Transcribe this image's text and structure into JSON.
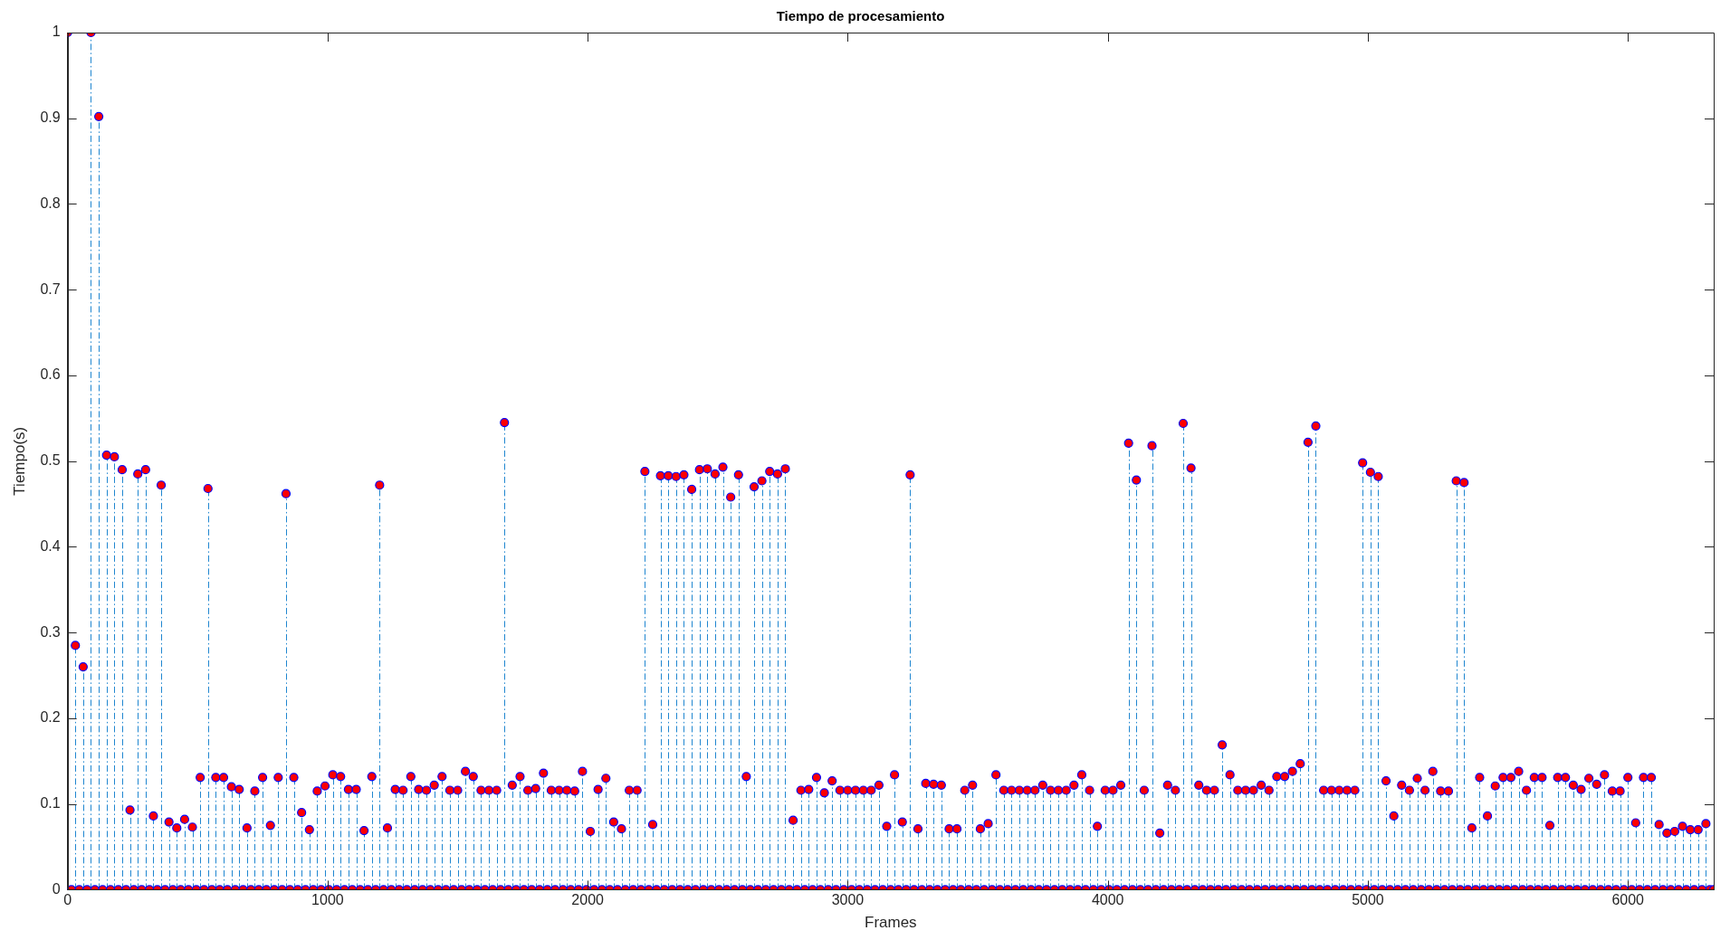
{
  "chart_data": {
    "type": "lollipop",
    "title": "Tiempo de procesamiento",
    "xlabel": "Frames",
    "ylabel": "Tiempo(s)",
    "x": [
      0,
      15,
      30,
      45,
      60,
      75,
      90,
      105,
      120,
      135,
      150,
      165,
      180,
      195,
      210,
      225,
      240,
      255,
      270,
      285,
      300,
      315,
      330,
      345,
      360,
      375,
      390,
      405,
      420,
      435,
      450,
      465,
      480,
      495,
      510,
      525,
      540,
      555,
      570,
      585,
      600,
      615,
      630,
      645,
      660,
      675,
      690,
      705,
      720,
      735,
      750,
      765,
      780,
      795,
      810,
      825,
      840,
      855,
      870,
      885,
      900,
      915,
      930,
      945,
      960,
      975,
      990,
      1005,
      1020,
      1035,
      1050,
      1065,
      1080,
      1095,
      1110,
      1125,
      1140,
      1155,
      1170,
      1185,
      1200,
      1215,
      1230,
      1245,
      1260,
      1275,
      1290,
      1305,
      1320,
      1335,
      1350,
      1365,
      1380,
      1395,
      1410,
      1425,
      1440,
      1455,
      1470,
      1485,
      1500,
      1515,
      1530,
      1545,
      1560,
      1575,
      1590,
      1605,
      1620,
      1635,
      1650,
      1665,
      1680,
      1695,
      1710,
      1725,
      1740,
      1755,
      1770,
      1785,
      1800,
      1815,
      1830,
      1845,
      1860,
      1875,
      1890,
      1905,
      1920,
      1935,
      1950,
      1965,
      1980,
      1995,
      2010,
      2025,
      2040,
      2055,
      2070,
      2085,
      2100,
      2115,
      2130,
      2145,
      2160,
      2175,
      2190,
      2205,
      2220,
      2235,
      2250,
      2265,
      2280,
      2295,
      2310,
      2325,
      2340,
      2355,
      2370,
      2385,
      2400,
      2415,
      2430,
      2445,
      2460,
      2475,
      2490,
      2505,
      2520,
      2535,
      2550,
      2565,
      2580,
      2595,
      2610,
      2625,
      2640,
      2655,
      2670,
      2685,
      2700,
      2715,
      2730,
      2745,
      2760,
      2775,
      2790,
      2805,
      2820,
      2835,
      2850,
      2865,
      2880,
      2895,
      2910,
      2925,
      2940,
      2955,
      2970,
      2985,
      3000,
      3015,
      3030,
      3045,
      3060,
      3075,
      3090,
      3105,
      3120,
      3135,
      3150,
      3165,
      3180,
      3195,
      3210,
      3225,
      3240,
      3255,
      3270,
      3285,
      3300,
      3315,
      3330,
      3345,
      3360,
      3375,
      3390,
      3405,
      3420,
      3435,
      3450,
      3465,
      3480,
      3495,
      3510,
      3525,
      3540,
      3555,
      3570,
      3585,
      3600,
      3615,
      3630,
      3645,
      3660,
      3675,
      3690,
      3705,
      3720,
      3735,
      3750,
      3765,
      3780,
      3795,
      3810,
      3825,
      3840,
      3855,
      3870,
      3885,
      3900,
      3915,
      3930,
      3945,
      3960,
      3975,
      3990,
      4005,
      4020,
      4035,
      4050,
      4065,
      4080,
      4095,
      4110,
      4125,
      4140,
      4155,
      4170,
      4185,
      4200,
      4215,
      4230,
      4245,
      4260,
      4275,
      4290,
      4305,
      4320,
      4335,
      4350,
      4365,
      4380,
      4395,
      4410,
      4425,
      4440,
      4455,
      4470,
      4485,
      4500,
      4515,
      4530,
      4545,
      4560,
      4575,
      4590,
      4605,
      4620,
      4635,
      4650,
      4665,
      4680,
      4695,
      4710,
      4725,
      4740,
      4755,
      4770,
      4785,
      4800,
      4815,
      4830,
      4845,
      4860,
      4875,
      4890,
      4905,
      4920,
      4935,
      4950,
      4965,
      4980,
      4995,
      5010,
      5025,
      5040,
      5055,
      5070,
      5085,
      5100,
      5115,
      5130,
      5145,
      5160,
      5175,
      5190,
      5205,
      5220,
      5235,
      5250,
      5265,
      5280,
      5295,
      5310,
      5325,
      5340,
      5355,
      5370,
      5385,
      5400,
      5415,
      5430,
      5445,
      5460,
      5475,
      5490,
      5505,
      5520,
      5535,
      5550,
      5565,
      5580,
      5595,
      5610,
      5625,
      5640,
      5655,
      5670,
      5685,
      5700,
      5715,
      5730,
      5745,
      5760,
      5775,
      5790,
      5805,
      5820,
      5835,
      5850,
      5865,
      5880,
      5895,
      5910,
      5925,
      5940,
      5955,
      5970,
      5985,
      6000,
      6015,
      6030,
      6045,
      6060,
      6075,
      6090,
      6105,
      6120,
      6135,
      6150,
      6165,
      6180,
      6195,
      6210,
      6225,
      6240,
      6255,
      6270,
      6285,
      6300,
      6315,
      6330
    ],
    "values": [
      1,
      0,
      0.285,
      0,
      0.26,
      0,
      1,
      0,
      0.902,
      0,
      0.507,
      0,
      0.505,
      0,
      0.49,
      0,
      0.093,
      0,
      0.485,
      0,
      0.49,
      0,
      0.086,
      0,
      0.472,
      0,
      0.079,
      0,
      0.072,
      0,
      0.082,
      0,
      0.073,
      0,
      0.131,
      0,
      0.468,
      0,
      0.131,
      0,
      0.131,
      0,
      0.12,
      0,
      0.117,
      0,
      0.072,
      0,
      0.115,
      0,
      0.131,
      0,
      0.075,
      0,
      0.131,
      0,
      0.462,
      0,
      0.131,
      0,
      0.09,
      0,
      0.07,
      0,
      0.115,
      0,
      0.121,
      0,
      0.134,
      0,
      0.132,
      0,
      0.117,
      0,
      0.117,
      0,
      0.069,
      0,
      0.132,
      0,
      0.472,
      0,
      0.072,
      0,
      0.117,
      0,
      0.116,
      0,
      0.132,
      0,
      0.117,
      0,
      0.116,
      0,
      0.122,
      0,
      0.132,
      0,
      0.116,
      0,
      0.116,
      0,
      0.138,
      0,
      0.132,
      0,
      0.116,
      0,
      0.116,
      0,
      0.116,
      0,
      0.545,
      0,
      0.122,
      0,
      0.132,
      0,
      0.116,
      0,
      0.118,
      0,
      0.136,
      0,
      0.116,
      0,
      0.116,
      0,
      0.116,
      0,
      0.115,
      0,
      0.138,
      0,
      0.068,
      0,
      0.117,
      0,
      0.13,
      0,
      0.079,
      0,
      0.071,
      0,
      0.116,
      0,
      0.116,
      0,
      0.488,
      0,
      0.076,
      0,
      0.483,
      0,
      0.483,
      0,
      0.482,
      0,
      0.484,
      0,
      0.467,
      0,
      0.49,
      0,
      0.491,
      0,
      0.485,
      0,
      0.493,
      0,
      0.458,
      0,
      0.484,
      0,
      0.132,
      0,
      0.47,
      0,
      0.477,
      0,
      0.488,
      0,
      0.485,
      0,
      0.491,
      0,
      0.081,
      0,
      0.116,
      0,
      0.117,
      0,
      0.131,
      0,
      0.113,
      0,
      0.127,
      0,
      0.116,
      0,
      0.116,
      0,
      0.116,
      0,
      0.116,
      0,
      0.116,
      0,
      0.122,
      0,
      0.074,
      0,
      0.134,
      0,
      0.079,
      0,
      0.484,
      0,
      0.071,
      0,
      0.124,
      0,
      0.123,
      0,
      0.122,
      0,
      0.071,
      0,
      0.071,
      0,
      0.116,
      0,
      0.122,
      0,
      0.071,
      0,
      0.077,
      0,
      0.134,
      0,
      0.116,
      0,
      0.116,
      0,
      0.116,
      0,
      0.116,
      0,
      0.116,
      0,
      0.122,
      0,
      0.116,
      0,
      0.116,
      0,
      0.116,
      0,
      0.122,
      0,
      0.134,
      0,
      0.116,
      0,
      0.074,
      0,
      0.116,
      0,
      0.116,
      0,
      0.122,
      0,
      0.521,
      0,
      0.478,
      0,
      0.116,
      0,
      0.518,
      0,
      0.066,
      0,
      0.122,
      0,
      0.116,
      0,
      0.544,
      0,
      0.492,
      0,
      0.122,
      0,
      0.116,
      0,
      0.116,
      0,
      0.169,
      0,
      0.134,
      0,
      0.116,
      0,
      0.116,
      0,
      0.116,
      0,
      0.122,
      0,
      0.116,
      0,
      0.132,
      0,
      0.132,
      0,
      0.138,
      0,
      0.147,
      0,
      0.522,
      0,
      0.541,
      0,
      0.116,
      0,
      0.116,
      0,
      0.116,
      0,
      0.116,
      0,
      0.116,
      0,
      0.498,
      0,
      0.487,
      0,
      0.482,
      0,
      0.127,
      0,
      0.086,
      0,
      0.122,
      0,
      0.116,
      0,
      0.13,
      0,
      0.116,
      0,
      0.138,
      0,
      0.115,
      0,
      0.115,
      0,
      0.477,
      0,
      0.475,
      0,
      0.072,
      0,
      0.131,
      0,
      0.086,
      0,
      0.121,
      0,
      0.131,
      0,
      0.131,
      0,
      0.138,
      0,
      0.116,
      0,
      0.131,
      0,
      0.131,
      0,
      0.075,
      0,
      0.131,
      0,
      0.131,
      0,
      0.122,
      0,
      0.117,
      0,
      0.13,
      0,
      0.123,
      0,
      0.134,
      0,
      0.115,
      0,
      0.115,
      0,
      0.131,
      0,
      0.078,
      0,
      0.131,
      0,
      0.131,
      0,
      0.076,
      0,
      0.066,
      0,
      0.068,
      0,
      0.074,
      0,
      0.07,
      0,
      0.07,
      0,
      0.077,
      0,
      0
    ],
    "color": "#ff0000",
    "marker": "circle",
    "line_style": "dashed",
    "xlim": [
      0,
      6330
    ],
    "ylim": [
      0,
      1
    ],
    "xticks": [
      0,
      1000,
      2000,
      3000,
      4000,
      5000,
      6000
    ],
    "yticks": [
      0,
      0.1,
      0.2,
      0.3,
      0.4,
      0.5,
      0.6,
      0.7,
      0.8,
      0.9,
      1
    ]
  }
}
